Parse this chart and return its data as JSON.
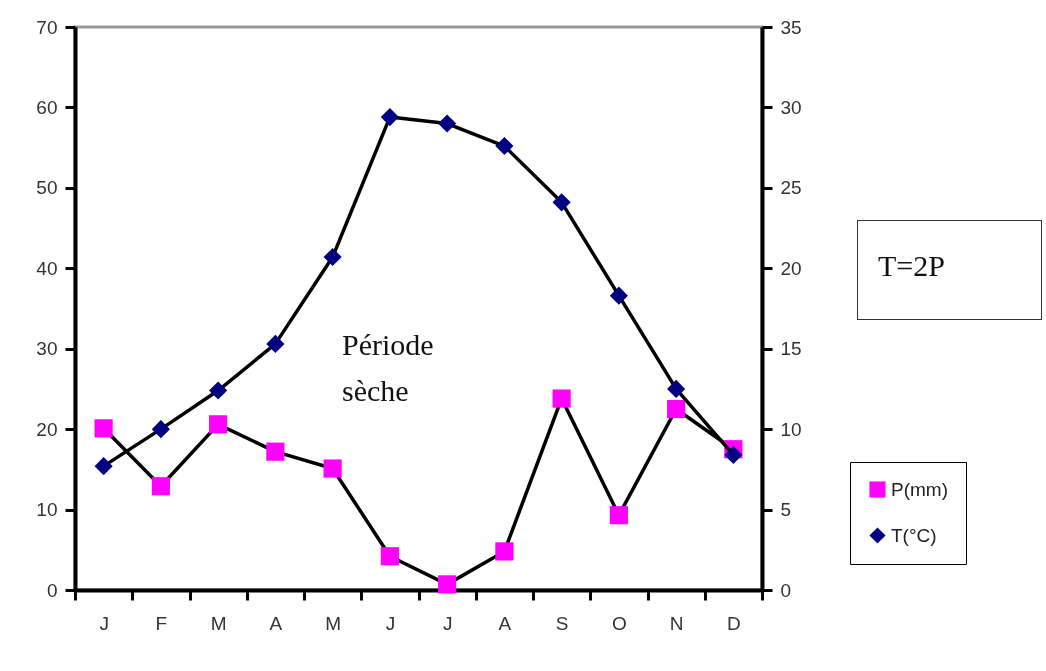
{
  "chart_data": {
    "type": "line",
    "categories": [
      "J",
      "F",
      "M",
      "A",
      "M",
      "J",
      "J",
      "A",
      "S",
      "O",
      "N",
      "D"
    ],
    "ylim": [
      0,
      70
    ],
    "yticks": [
      0,
      10,
      20,
      30,
      40,
      50,
      60,
      70
    ],
    "y2lim": [
      0,
      35
    ],
    "y2ticks": [
      0,
      5,
      10,
      15,
      20,
      25,
      30,
      35
    ],
    "legend": "bottom right",
    "annotations": [
      "Période sèche",
      "T=2P"
    ],
    "series": [
      {
        "name": "P(mm)",
        "color": "#ff00ff",
        "marker": "square",
        "values": [
          20.1,
          12.9,
          20.6,
          17.2,
          15.1,
          4.2,
          0.7,
          4.8,
          23.8,
          9.3,
          22.5,
          17.5
        ]
      },
      {
        "name": "T(°C)",
        "color": "#000080",
        "marker": "diamond",
        "axis": "y2",
        "values": [
          7.7,
          10.0,
          12.4,
          15.3,
          20.7,
          29.4,
          29.0,
          27.6,
          24.1,
          18.3,
          12.5,
          8.4
        ]
      }
    ]
  }
}
